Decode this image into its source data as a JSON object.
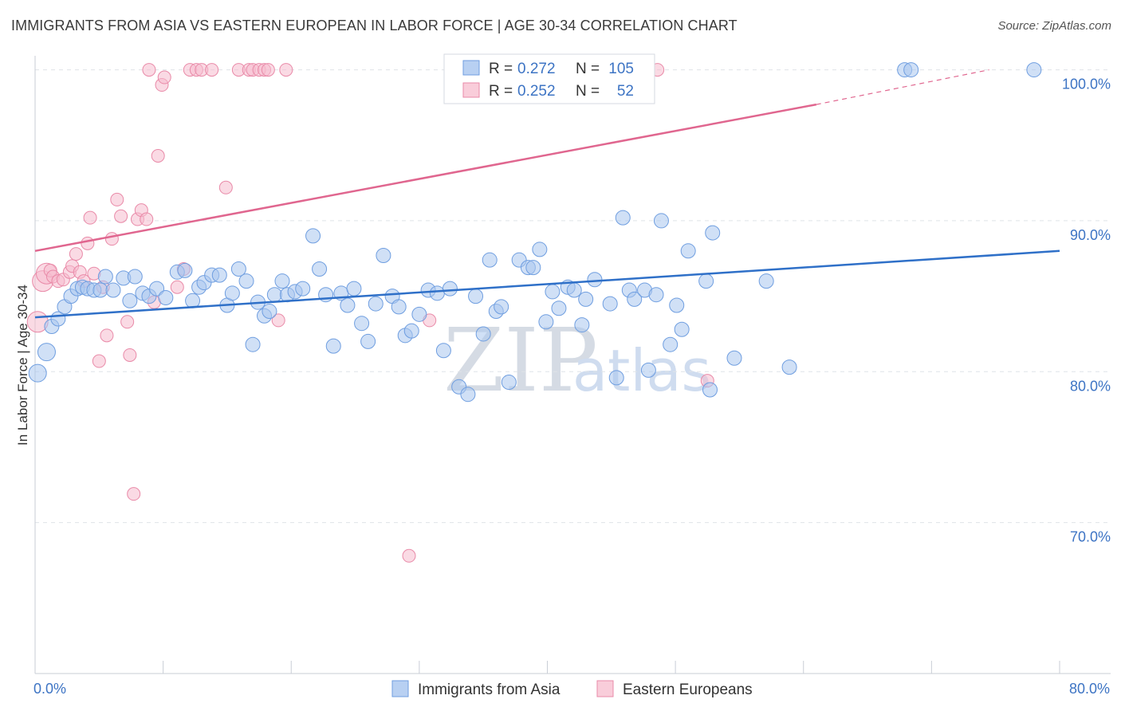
{
  "header": {
    "title": "IMMIGRANTS FROM ASIA VS EASTERN EUROPEAN IN LABOR FORCE | AGE 30-34 CORRELATION CHART",
    "source": "Source: ZipAtlas.com"
  },
  "watermark": {
    "zip": "ZIP",
    "atlas": "atlas"
  },
  "legend_box": {
    "r_label": "R =",
    "n_label": "N =",
    "rows": [
      {
        "r": "0.272",
        "n": "105"
      },
      {
        "r": "0.252",
        "n": "52"
      }
    ]
  },
  "bottom_legend": {
    "items": [
      "Immigrants from Asia",
      "Eastern Europeans"
    ]
  },
  "colors": {
    "blue_fill": "#a9c6ef",
    "blue_stroke": "#6f9ee0",
    "blue_line": "#2f70c8",
    "pink_fill": "#f6bccd",
    "pink_stroke": "#e98aa8",
    "pink_line": "#e0668f",
    "tick_text": "#3d74c4",
    "grid": "#dfe3e8"
  },
  "chart_data": {
    "type": "scatter",
    "title": "IMMIGRANTS FROM ASIA VS EASTERN EUROPEAN IN LABOR FORCE | AGE 30-34 CORRELATION CHART",
    "xlabel": "",
    "ylabel": "In Labor Force | Age 30-34",
    "xlim": [
      0,
      80
    ],
    "ylim": [
      60,
      100.4
    ],
    "x_tick_labels": [
      "0.0%",
      "80.0%"
    ],
    "y_ticks": [
      70,
      80,
      90,
      100
    ],
    "y_tick_labels": [
      "70.0%",
      "80.0%",
      "90.0%",
      "100.0%"
    ],
    "legend_position": "top-center",
    "series": [
      {
        "name": "Immigrants from Asia",
        "R": 0.272,
        "N": 105,
        "trend": {
          "x0": 0,
          "y0": 83.6,
          "x1": 80,
          "y1": 88.0
        },
        "points": [
          [
            0.2,
            79.9
          ],
          [
            0.9,
            81.3
          ],
          [
            1.3,
            83.0
          ],
          [
            1.8,
            83.5
          ],
          [
            2.3,
            84.3
          ],
          [
            2.8,
            85.0
          ],
          [
            3.3,
            85.5
          ],
          [
            3.7,
            85.6
          ],
          [
            4.1,
            85.5
          ],
          [
            4.6,
            85.4
          ],
          [
            5.1,
            85.4
          ],
          [
            5.5,
            86.3
          ],
          [
            6.1,
            85.4
          ],
          [
            6.9,
            86.2
          ],
          [
            7.4,
            84.7
          ],
          [
            7.8,
            86.3
          ],
          [
            8.4,
            85.2
          ],
          [
            8.9,
            85.0
          ],
          [
            9.5,
            85.5
          ],
          [
            10.2,
            84.9
          ],
          [
            11.1,
            86.6
          ],
          [
            11.7,
            86.7
          ],
          [
            12.3,
            84.7
          ],
          [
            12.8,
            85.6
          ],
          [
            13.2,
            85.9
          ],
          [
            13.8,
            86.4
          ],
          [
            14.4,
            86.4
          ],
          [
            15.0,
            84.4
          ],
          [
            15.4,
            85.2
          ],
          [
            15.9,
            86.8
          ],
          [
            16.5,
            86.0
          ],
          [
            17.0,
            81.8
          ],
          [
            17.4,
            84.6
          ],
          [
            17.9,
            83.7
          ],
          [
            18.3,
            84.0
          ],
          [
            18.7,
            85.1
          ],
          [
            19.3,
            86.0
          ],
          [
            19.7,
            85.1
          ],
          [
            20.3,
            85.3
          ],
          [
            20.9,
            85.5
          ],
          [
            21.7,
            89.0
          ],
          [
            22.2,
            86.8
          ],
          [
            22.7,
            85.1
          ],
          [
            23.3,
            81.7
          ],
          [
            23.9,
            85.2
          ],
          [
            24.4,
            84.4
          ],
          [
            24.9,
            85.5
          ],
          [
            25.5,
            83.2
          ],
          [
            26.0,
            82.0
          ],
          [
            26.6,
            84.5
          ],
          [
            27.2,
            87.7
          ],
          [
            27.9,
            85.0
          ],
          [
            28.4,
            84.3
          ],
          [
            28.9,
            82.4
          ],
          [
            29.4,
            82.7
          ],
          [
            30.0,
            83.8
          ],
          [
            30.7,
            85.4
          ],
          [
            31.4,
            85.2
          ],
          [
            31.9,
            81.4
          ],
          [
            32.4,
            85.5
          ],
          [
            33.1,
            79.0
          ],
          [
            33.8,
            78.5
          ],
          [
            34.4,
            85.0
          ],
          [
            35.0,
            82.5
          ],
          [
            35.5,
            87.4
          ],
          [
            36.0,
            84.0
          ],
          [
            36.4,
            84.3
          ],
          [
            37.0,
            79.3
          ],
          [
            37.8,
            87.4
          ],
          [
            38.5,
            86.9
          ],
          [
            38.9,
            86.9
          ],
          [
            39.4,
            88.1
          ],
          [
            39.9,
            83.3
          ],
          [
            40.4,
            85.3
          ],
          [
            40.9,
            84.2
          ],
          [
            41.6,
            85.6
          ],
          [
            42.1,
            85.4
          ],
          [
            42.7,
            83.1
          ],
          [
            43.0,
            84.8
          ],
          [
            43.7,
            86.1
          ],
          [
            44.9,
            84.5
          ],
          [
            45.4,
            79.6
          ],
          [
            45.9,
            90.2
          ],
          [
            46.4,
            85.4
          ],
          [
            46.8,
            84.8
          ],
          [
            47.6,
            85.4
          ],
          [
            47.9,
            80.1
          ],
          [
            48.5,
            85.1
          ],
          [
            48.9,
            90.0
          ],
          [
            49.6,
            81.8
          ],
          [
            50.1,
            84.4
          ],
          [
            50.5,
            82.8
          ],
          [
            51.0,
            88.0
          ],
          [
            52.4,
            86.0
          ],
          [
            52.7,
            78.8
          ],
          [
            52.9,
            89.2
          ],
          [
            54.6,
            80.9
          ],
          [
            57.1,
            86.0
          ],
          [
            58.9,
            80.3
          ],
          [
            67.9,
            100.0
          ],
          [
            68.4,
            100.0
          ],
          [
            78.0,
            100.0
          ]
        ]
      },
      {
        "name": "Eastern Europeans",
        "R": 0.252,
        "N": 52,
        "trend": {
          "x0": 0,
          "y0": 88.0,
          "x1": 61.0,
          "y1": 97.7,
          "dashed_to": {
            "x": 74.5,
            "y": 100.0
          }
        },
        "points": [
          [
            0.2,
            83.3
          ],
          [
            0.6,
            86.0
          ],
          [
            0.9,
            86.5
          ],
          [
            1.2,
            86.7
          ],
          [
            1.4,
            86.3
          ],
          [
            1.8,
            86.0
          ],
          [
            2.2,
            86.1
          ],
          [
            2.7,
            86.6
          ],
          [
            2.9,
            87.0
          ],
          [
            3.2,
            87.8
          ],
          [
            3.5,
            86.6
          ],
          [
            3.8,
            86.0
          ],
          [
            4.1,
            88.5
          ],
          [
            4.3,
            90.2
          ],
          [
            4.6,
            86.5
          ],
          [
            5.0,
            80.7
          ],
          [
            5.3,
            85.6
          ],
          [
            5.6,
            82.4
          ],
          [
            6.0,
            88.8
          ],
          [
            6.4,
            91.4
          ],
          [
            6.7,
            90.3
          ],
          [
            7.2,
            83.3
          ],
          [
            7.4,
            81.1
          ],
          [
            7.7,
            71.9
          ],
          [
            8.0,
            90.1
          ],
          [
            8.3,
            90.7
          ],
          [
            8.7,
            90.1
          ],
          [
            8.9,
            100.0
          ],
          [
            9.3,
            84.6
          ],
          [
            9.6,
            94.3
          ],
          [
            9.9,
            99.0
          ],
          [
            10.1,
            99.5
          ],
          [
            11.1,
            85.6
          ],
          [
            11.6,
            86.8
          ],
          [
            12.1,
            100.0
          ],
          [
            12.6,
            100.0
          ],
          [
            13.0,
            100.0
          ],
          [
            13.8,
            100.0
          ],
          [
            14.9,
            92.2
          ],
          [
            15.9,
            100.0
          ],
          [
            16.7,
            100.0
          ],
          [
            17.0,
            100.0
          ],
          [
            17.5,
            100.0
          ],
          [
            17.9,
            100.0
          ],
          [
            18.2,
            100.0
          ],
          [
            19.0,
            83.4
          ],
          [
            19.6,
            100.0
          ],
          [
            29.2,
            67.8
          ],
          [
            30.8,
            83.4
          ],
          [
            48.6,
            100.0
          ],
          [
            52.5,
            79.4
          ]
        ]
      }
    ]
  }
}
